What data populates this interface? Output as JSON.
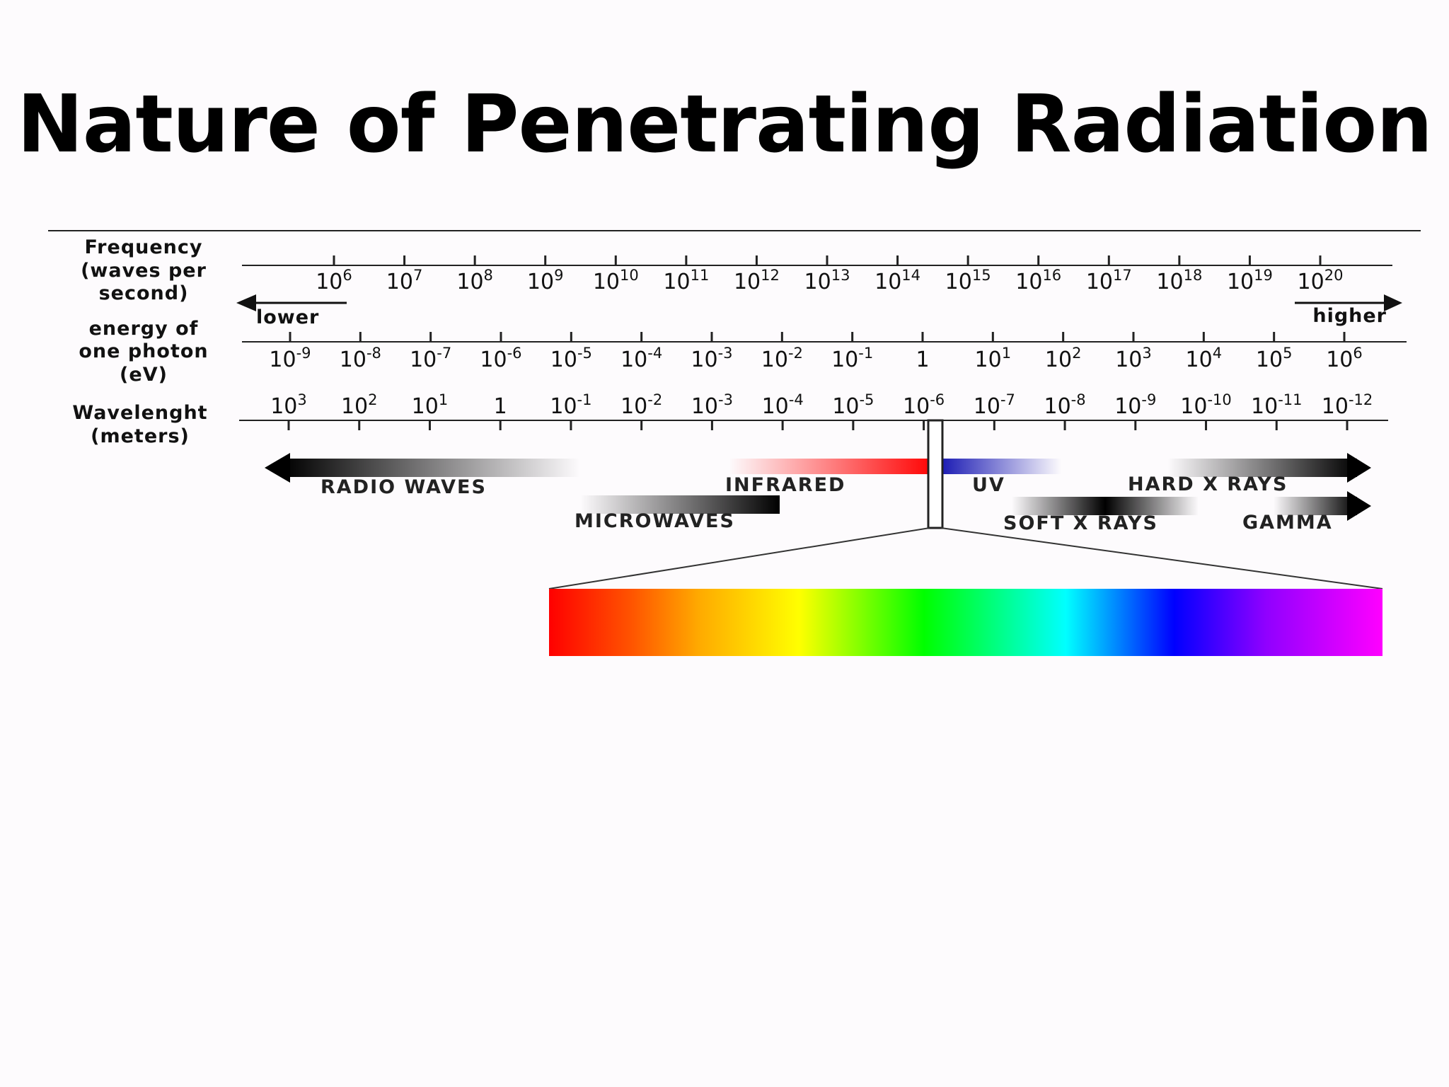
{
  "title": "Nature of Penetrating Radiation",
  "labels": {
    "frequency": [
      "Frequency",
      "(waves per",
      "second)"
    ],
    "energy": [
      "energy of",
      "one photon",
      "(eV)"
    ],
    "wavelength": [
      "Wavelenght",
      "(meters)"
    ],
    "lower": "lower",
    "higher": "higher"
  },
  "frequency_ticks": [
    {
      "base": "10",
      "exp": "6"
    },
    {
      "base": "10",
      "exp": "7"
    },
    {
      "base": "10",
      "exp": "8"
    },
    {
      "base": "10",
      "exp": "9"
    },
    {
      "base": "10",
      "exp": "10"
    },
    {
      "base": "10",
      "exp": "11"
    },
    {
      "base": "10",
      "exp": "12"
    },
    {
      "base": "10",
      "exp": "13"
    },
    {
      "base": "10",
      "exp": "14"
    },
    {
      "base": "10",
      "exp": "15"
    },
    {
      "base": "10",
      "exp": "16"
    },
    {
      "base": "10",
      "exp": "17"
    },
    {
      "base": "10",
      "exp": "18"
    },
    {
      "base": "10",
      "exp": "19"
    },
    {
      "base": "10",
      "exp": "20"
    }
  ],
  "energy_ticks": [
    {
      "base": "10",
      "exp": "-9"
    },
    {
      "base": "10",
      "exp": "-8"
    },
    {
      "base": "10",
      "exp": "-7"
    },
    {
      "base": "10",
      "exp": "-6"
    },
    {
      "base": "10",
      "exp": "-5"
    },
    {
      "base": "10",
      "exp": "-4"
    },
    {
      "base": "10",
      "exp": "-3"
    },
    {
      "base": "10",
      "exp": "-2"
    },
    {
      "base": "10",
      "exp": "-1"
    },
    {
      "base": "1",
      "exp": ""
    },
    {
      "base": "10",
      "exp": "1"
    },
    {
      "base": "10",
      "exp": "2"
    },
    {
      "base": "10",
      "exp": "3"
    },
    {
      "base": "10",
      "exp": "4"
    },
    {
      "base": "10",
      "exp": "5"
    },
    {
      "base": "10",
      "exp": "6"
    }
  ],
  "wavelength_ticks": [
    {
      "base": "10",
      "exp": "3"
    },
    {
      "base": "10",
      "exp": "2"
    },
    {
      "base": "10",
      "exp": "1"
    },
    {
      "base": "1",
      "exp": ""
    },
    {
      "base": "10",
      "exp": "-1"
    },
    {
      "base": "10",
      "exp": "-2"
    },
    {
      "base": "10",
      "exp": "-3"
    },
    {
      "base": "10",
      "exp": "-4"
    },
    {
      "base": "10",
      "exp": "-5"
    },
    {
      "base": "10",
      "exp": "-6"
    },
    {
      "base": "10",
      "exp": "-7"
    },
    {
      "base": "10",
      "exp": "-8"
    },
    {
      "base": "10",
      "exp": "-9"
    },
    {
      "base": "10",
      "exp": "-10"
    },
    {
      "base": "10",
      "exp": "-11"
    },
    {
      "base": "10",
      "exp": "-12"
    }
  ],
  "bands": {
    "radio": "RADIO WAVES",
    "infrared": "INFRARED",
    "uv": "UV",
    "hard_xrays": "HARD X RAYS",
    "microwaves": "MICROWAVES",
    "soft_xrays": "SOFT X RAYS",
    "gamma": "GAMMA"
  },
  "visible_colors": [
    "#ff0000",
    "#ff8000",
    "#ffff00",
    "#00ff00",
    "#00ffff",
    "#0000ff",
    "#ff00ff"
  ]
}
